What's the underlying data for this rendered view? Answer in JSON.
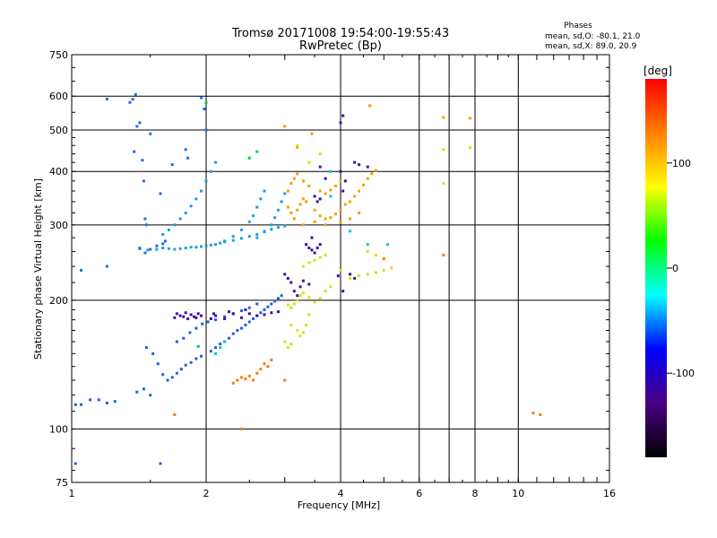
{
  "chart_data": {
    "type": "scatter",
    "title": "Tromsø 20171008 19:54:00-19:55:43",
    "subtitle": "RwPretec (Bp)",
    "xlabel": "Frequency [MHz]",
    "ylabel": "Stationary phase Virtual Height [km]",
    "x_scale": "log",
    "y_scale": "log",
    "xlim": [
      1,
      16
    ],
    "ylim": [
      75,
      750
    ],
    "x_ticks": [
      1,
      2,
      4,
      6,
      8,
      10,
      16
    ],
    "x_gridlines": [
      2,
      4,
      6,
      7,
      8,
      10
    ],
    "y_ticks": [
      75,
      100,
      200,
      300,
      400,
      500,
      600,
      750
    ],
    "y_gridlines": [
      100,
      200,
      300,
      400,
      500,
      600
    ],
    "grid": true,
    "stats": {
      "title": "Phases",
      "o_line": "mean, sd,O: -80.1, 21.0",
      "x_line": "mean, sd,X:  89.0, 20.9"
    },
    "colorbar": {
      "label": "[deg]",
      "range": [
        -180,
        180
      ],
      "ticks": [
        100,
        0,
        -100
      ],
      "stops": [
        "#000000",
        "#4b0082",
        "#0000ff",
        "#00ffff",
        "#00ff00",
        "#ffff00",
        "#ff8000",
        "#ff0000"
      ]
    },
    "series": [
      {
        "color": "#1a9fe0",
        "points": [
          [
            1.42,
            265
          ],
          [
            1.48,
            262
          ],
          [
            1.55,
            263
          ],
          [
            1.6,
            265
          ],
          [
            1.65,
            264
          ],
          [
            1.7,
            263
          ],
          [
            1.75,
            264
          ],
          [
            1.8,
            265
          ],
          [
            1.85,
            266
          ],
          [
            1.9,
            266
          ],
          [
            1.95,
            267
          ],
          [
            2.0,
            268
          ],
          [
            2.05,
            269
          ],
          [
            2.1,
            270
          ],
          [
            2.15,
            272
          ],
          [
            2.2,
            274
          ],
          [
            2.3,
            276
          ],
          [
            2.4,
            279
          ],
          [
            2.5,
            282
          ],
          [
            2.6,
            285
          ],
          [
            2.7,
            289
          ],
          [
            2.8,
            293
          ],
          [
            2.9,
            296
          ],
          [
            3.0,
            298
          ],
          [
            1.6,
            285
          ],
          [
            1.65,
            292
          ],
          [
            1.7,
            300
          ],
          [
            1.75,
            310
          ],
          [
            1.8,
            320
          ],
          [
            1.85,
            332
          ],
          [
            1.9,
            345
          ],
          [
            1.95,
            360
          ],
          [
            2.0,
            380
          ],
          [
            2.05,
            400
          ],
          [
            2.1,
            420
          ],
          [
            2.2,
            275
          ],
          [
            2.3,
            282
          ],
          [
            2.4,
            292
          ],
          [
            2.5,
            305
          ],
          [
            2.55,
            315
          ],
          [
            2.6,
            330
          ],
          [
            2.65,
            345
          ],
          [
            2.7,
            360
          ],
          [
            2.6,
            280
          ],
          [
            2.7,
            290
          ],
          [
            2.8,
            300
          ],
          [
            2.85,
            312
          ],
          [
            2.9,
            325
          ],
          [
            2.95,
            340
          ],
          [
            3.0,
            355
          ]
        ]
      },
      {
        "color": "#1e6fe6",
        "points": [
          [
            1.42,
            264
          ],
          [
            1.46,
            258
          ],
          [
            1.5,
            263
          ],
          [
            1.55,
            268
          ],
          [
            1.6,
            271
          ],
          [
            1.62,
            275
          ],
          [
            1.44,
            425
          ],
          [
            1.37,
            590
          ],
          [
            1.39,
            605
          ],
          [
            1.4,
            510
          ],
          [
            1.42,
            520
          ],
          [
            1.2,
            591
          ],
          [
            1.35,
            580
          ],
          [
            1.5,
            490
          ],
          [
            1.38,
            445
          ],
          [
            1.45,
            380
          ],
          [
            1.46,
            310
          ],
          [
            1.47,
            300
          ],
          [
            1.58,
            355
          ],
          [
            1.68,
            415
          ],
          [
            1.82,
            430
          ],
          [
            1.95,
            595
          ],
          [
            1.98,
            560
          ],
          [
            2.0,
            500
          ],
          [
            1.8,
            450
          ],
          [
            1.2,
            240
          ],
          [
            1.05,
            235
          ]
        ]
      },
      {
        "color": "#2060e0",
        "points": [
          [
            1.47,
            155
          ],
          [
            1.52,
            150
          ],
          [
            1.56,
            142
          ],
          [
            1.6,
            134
          ],
          [
            1.64,
            130
          ],
          [
            1.68,
            132
          ],
          [
            1.72,
            135
          ],
          [
            1.76,
            138
          ],
          [
            1.8,
            141
          ],
          [
            1.85,
            143
          ],
          [
            1.9,
            146
          ],
          [
            1.95,
            148
          ],
          [
            2.05,
            152
          ],
          [
            2.1,
            155
          ],
          [
            2.15,
            158
          ],
          [
            2.2,
            160
          ],
          [
            2.25,
            163
          ],
          [
            2.3,
            167
          ],
          [
            2.35,
            170
          ],
          [
            2.4,
            172
          ],
          [
            2.45,
            175
          ],
          [
            2.5,
            178
          ],
          [
            2.55,
            181
          ],
          [
            2.6,
            184
          ],
          [
            2.65,
            187
          ],
          [
            2.7,
            190
          ],
          [
            2.75,
            193
          ],
          [
            2.8,
            196
          ],
          [
            2.85,
            199
          ],
          [
            2.9,
            202
          ],
          [
            2.95,
            205
          ],
          [
            1.72,
            160
          ],
          [
            1.78,
            163
          ],
          [
            1.84,
            168
          ],
          [
            1.9,
            172
          ],
          [
            1.96,
            176
          ],
          [
            2.02,
            178
          ],
          [
            2.1,
            180
          ],
          [
            2.2,
            183
          ],
          [
            2.3,
            186
          ],
          [
            2.4,
            189
          ],
          [
            2.5,
            192
          ],
          [
            2.6,
            196
          ],
          [
            1.1,
            117
          ],
          [
            1.15,
            117
          ],
          [
            1.2,
            115
          ],
          [
            1.25,
            116
          ],
          [
            1.02,
            114
          ],
          [
            1.05,
            114
          ],
          [
            1.4,
            122
          ],
          [
            1.45,
            124
          ],
          [
            1.5,
            120
          ],
          [
            1.02,
            83
          ],
          [
            1.58,
            83
          ]
        ]
      },
      {
        "color": "#4010a0",
        "points": [
          [
            1.7,
            182
          ],
          [
            1.72,
            186
          ],
          [
            1.75,
            184
          ],
          [
            1.78,
            183
          ],
          [
            1.8,
            187
          ],
          [
            1.82,
            181
          ],
          [
            1.85,
            185
          ],
          [
            1.88,
            183
          ],
          [
            1.9,
            182
          ],
          [
            1.92,
            186
          ],
          [
            1.95,
            184
          ],
          [
            2.05,
            181
          ],
          [
            2.08,
            186
          ],
          [
            2.1,
            184
          ],
          [
            2.2,
            181
          ],
          [
            2.25,
            188
          ],
          [
            2.3,
            186
          ],
          [
            2.4,
            182
          ],
          [
            2.45,
            190
          ],
          [
            2.5,
            186
          ],
          [
            2.6,
            184
          ],
          [
            2.7,
            185
          ],
          [
            2.8,
            187
          ],
          [
            2.9,
            188
          ],
          [
            3.0,
            230
          ],
          [
            3.05,
            225
          ],
          [
            3.1,
            220
          ],
          [
            3.15,
            210
          ],
          [
            3.2,
            205
          ],
          [
            3.25,
            215
          ],
          [
            3.3,
            222
          ],
          [
            3.4,
            218
          ],
          [
            3.35,
            270
          ],
          [
            3.4,
            265
          ],
          [
            3.45,
            262
          ],
          [
            3.5,
            258
          ],
          [
            3.55,
            265
          ],
          [
            3.6,
            270
          ],
          [
            3.45,
            280
          ],
          [
            3.5,
            350
          ],
          [
            3.55,
            340
          ],
          [
            3.6,
            345
          ],
          [
            3.6,
            410
          ],
          [
            3.7,
            385
          ],
          [
            4.0,
            400
          ],
          [
            4.05,
            360
          ],
          [
            4.1,
            380
          ],
          [
            4.0,
            520
          ],
          [
            4.05,
            540
          ],
          [
            4.3,
            420
          ],
          [
            4.4,
            415
          ],
          [
            4.6,
            410
          ],
          [
            3.95,
            228
          ],
          [
            4.05,
            210
          ],
          [
            4.2,
            230
          ],
          [
            4.3,
            225
          ]
        ]
      },
      {
        "color": "#f5a000",
        "points": [
          [
            3.05,
            330
          ],
          [
            3.1,
            320
          ],
          [
            3.15,
            310
          ],
          [
            3.2,
            325
          ],
          [
            3.25,
            335
          ],
          [
            3.3,
            345
          ],
          [
            3.35,
            340
          ],
          [
            3.5,
            325
          ],
          [
            3.6,
            315
          ],
          [
            3.7,
            310
          ],
          [
            3.8,
            312
          ],
          [
            3.9,
            318
          ],
          [
            4.0,
            325
          ],
          [
            4.1,
            335
          ],
          [
            4.2,
            340
          ],
          [
            4.3,
            350
          ],
          [
            4.4,
            360
          ],
          [
            4.5,
            372
          ],
          [
            4.6,
            385
          ],
          [
            4.7,
            395
          ],
          [
            4.8,
            402
          ],
          [
            3.05,
            360
          ],
          [
            3.1,
            375
          ],
          [
            3.15,
            385
          ],
          [
            3.2,
            395
          ],
          [
            3.3,
            380
          ],
          [
            3.4,
            370
          ],
          [
            3.6,
            360
          ],
          [
            3.7,
            355
          ],
          [
            3.8,
            362
          ],
          [
            3.9,
            370
          ],
          [
            4.0,
            380
          ],
          [
            3.0,
            510
          ],
          [
            3.45,
            490
          ],
          [
            3.2,
            455
          ],
          [
            4.65,
            570
          ],
          [
            6.8,
            535
          ],
          [
            7.8,
            533
          ],
          [
            3.3,
            300
          ],
          [
            3.5,
            305
          ],
          [
            3.7,
            300
          ],
          [
            4.0,
            305
          ],
          [
            4.2,
            310
          ],
          [
            4.4,
            320
          ]
        ]
      },
      {
        "color": "#d8e010",
        "points": [
          [
            3.05,
            195
          ],
          [
            3.1,
            192
          ],
          [
            3.15,
            196
          ],
          [
            3.2,
            200
          ],
          [
            3.25,
            205
          ],
          [
            3.3,
            208
          ],
          [
            3.4,
            203
          ],
          [
            3.5,
            198
          ],
          [
            3.6,
            202
          ],
          [
            3.7,
            210
          ],
          [
            3.8,
            215
          ],
          [
            3.1,
            175
          ],
          [
            3.2,
            170
          ],
          [
            3.25,
            165
          ],
          [
            3.3,
            168
          ],
          [
            3.35,
            175
          ],
          [
            3.4,
            185
          ],
          [
            3.0,
            160
          ],
          [
            3.05,
            155
          ],
          [
            3.1,
            158
          ],
          [
            3.3,
            240
          ],
          [
            3.4,
            245
          ],
          [
            3.5,
            248
          ],
          [
            3.6,
            252
          ],
          [
            3.7,
            255
          ],
          [
            4.0,
            235
          ],
          [
            4.2,
            225
          ],
          [
            4.4,
            228
          ],
          [
            4.6,
            230
          ],
          [
            4.8,
            232
          ],
          [
            5.0,
            235
          ],
          [
            5.2,
            238
          ],
          [
            4.6,
            260
          ],
          [
            4.8,
            255
          ],
          [
            5.0,
            250
          ],
          [
            6.8,
            375
          ],
          [
            7.8,
            455
          ],
          [
            6.8,
            450
          ],
          [
            3.2,
            460
          ],
          [
            3.4,
            420
          ],
          [
            3.6,
            440
          ]
        ]
      },
      {
        "color": "#ff7700",
        "points": [
          [
            2.3,
            128
          ],
          [
            2.35,
            130
          ],
          [
            2.4,
            132
          ],
          [
            2.45,
            131
          ],
          [
            2.5,
            133
          ],
          [
            2.55,
            130
          ],
          [
            2.6,
            135
          ],
          [
            2.65,
            138
          ],
          [
            2.7,
            142
          ],
          [
            2.75,
            140
          ],
          [
            2.8,
            145
          ],
          [
            3.0,
            130
          ],
          [
            2.4,
            100
          ],
          [
            1.7,
            108
          ],
          [
            5.0,
            250
          ],
          [
            6.8,
            255
          ],
          [
            10.8,
            109
          ],
          [
            11.2,
            108
          ]
        ]
      },
      {
        "color": "#00d040",
        "points": [
          [
            1.92,
            156
          ],
          [
            2.5,
            430
          ],
          [
            2.6,
            445
          ],
          [
            2.0,
            580
          ]
        ]
      },
      {
        "color": "#00c8d0",
        "points": [
          [
            2.1,
            150
          ],
          [
            2.15,
            155
          ],
          [
            2.2,
            160
          ],
          [
            3.8,
            400
          ],
          [
            3.8,
            350
          ],
          [
            4.2,
            290
          ],
          [
            4.6,
            270
          ],
          [
            5.1,
            270
          ]
        ]
      }
    ]
  }
}
